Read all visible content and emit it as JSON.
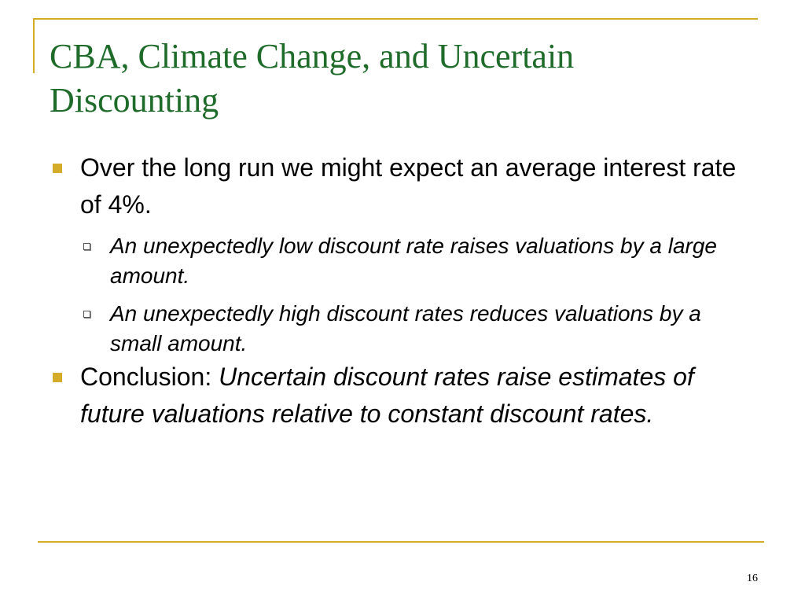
{
  "slide": {
    "title_line1": "CBA, Climate Change, and Uncertain",
    "title_line2": "Discounting",
    "bullets": [
      {
        "text": "Over the long run we might expect an average interest rate of 4%.",
        "sub": [
          "An unexpectedly low discount rate raises valuations by a large amount.",
          "An unexpectedly high discount rates reduces valuations by a small amount."
        ]
      },
      {
        "lead": "Conclusion: ",
        "emphasis": "Uncertain discount rates raise estimates of future valuations relative to constant discount rates."
      }
    ],
    "page_number": "16"
  },
  "colors": {
    "title": "#1e6b2a",
    "accent": "#d4ac2a",
    "text": "#000000"
  }
}
